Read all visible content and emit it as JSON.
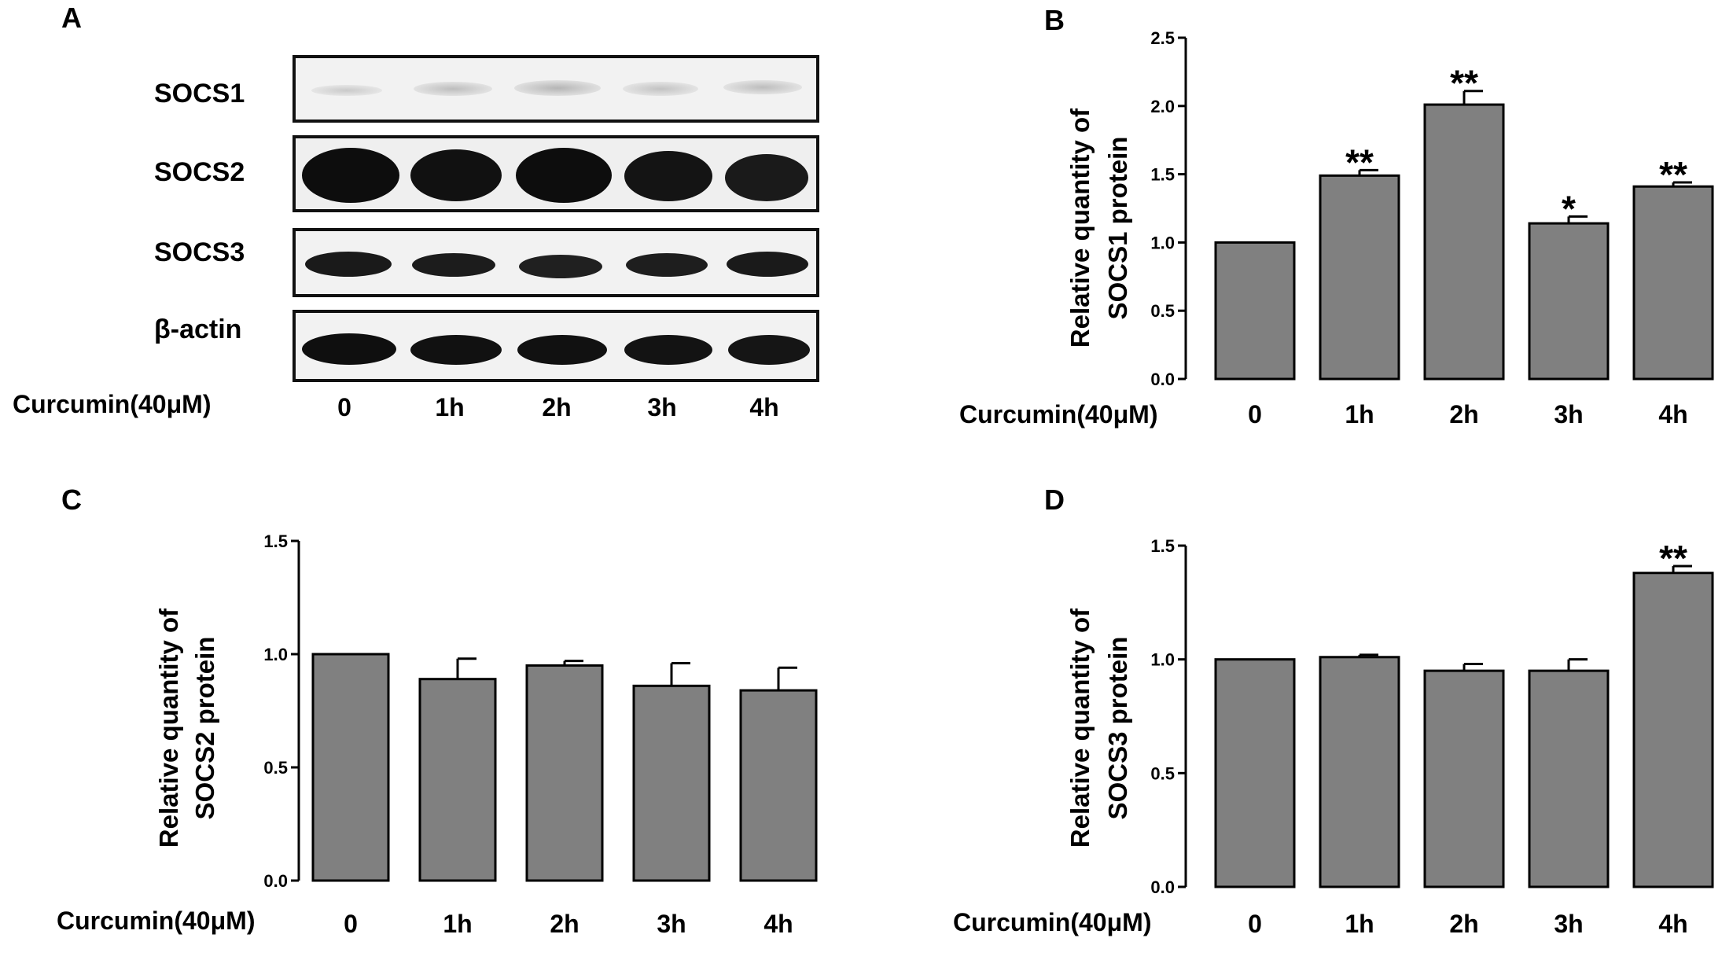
{
  "panel_a": {
    "letter": "A",
    "rows": [
      "SOCS1",
      "SOCS2",
      "SOCS3",
      "β-actin"
    ],
    "treatment_label": "Curcumin(40μM)",
    "lanes": [
      "0",
      "1h",
      "2h",
      "3h",
      "4h"
    ]
  },
  "chart_data": [
    {
      "panel": "B",
      "type": "bar",
      "categories": [
        "0",
        "1h",
        "2h",
        "3h",
        "4h"
      ],
      "values": [
        1.0,
        1.49,
        2.01,
        1.14,
        1.41
      ],
      "errors": [
        0.0,
        0.04,
        0.1,
        0.05,
        0.03
      ],
      "significance": [
        "",
        "**",
        "**",
        "*",
        "**"
      ],
      "ylabel": [
        "Relative quantity of",
        "SOCS1 protein"
      ],
      "xlabel": "Curcumin(40μM)",
      "ylim": [
        0,
        2.5
      ],
      "yticks": [
        "0.0",
        "0.5",
        "1.0",
        "1.5",
        "2.0",
        "2.5"
      ],
      "bar_color": "#808080"
    },
    {
      "panel": "C",
      "type": "bar",
      "categories": [
        "0",
        "1h",
        "2h",
        "3h",
        "4h"
      ],
      "values": [
        1.0,
        0.89,
        0.95,
        0.86,
        0.84
      ],
      "errors": [
        0.0,
        0.09,
        0.02,
        0.1,
        0.1
      ],
      "significance": [
        "",
        "",
        "",
        "",
        ""
      ],
      "ylabel": [
        "Relative quantity of",
        "SOCS2 protein"
      ],
      "xlabel": "Curcumin(40μM)",
      "ylim": [
        0,
        1.5
      ],
      "yticks": [
        "0.0",
        "0.5",
        "1.0",
        "1.5"
      ],
      "bar_color": "#808080"
    },
    {
      "panel": "D",
      "type": "bar",
      "categories": [
        "0",
        "1h",
        "2h",
        "3h",
        "4h"
      ],
      "values": [
        1.0,
        1.01,
        0.95,
        0.95,
        1.38
      ],
      "errors": [
        0.0,
        0.01,
        0.03,
        0.05,
        0.03
      ],
      "significance": [
        "",
        "",
        "",
        "",
        "**"
      ],
      "ylabel": [
        "Relative quantity of",
        "SOCS3 protein"
      ],
      "xlabel": "Curcumin(40μM)",
      "ylim": [
        0,
        1.5
      ],
      "yticks": [
        "0.0",
        "0.5",
        "1.0",
        "1.5"
      ],
      "bar_color": "#808080"
    }
  ]
}
